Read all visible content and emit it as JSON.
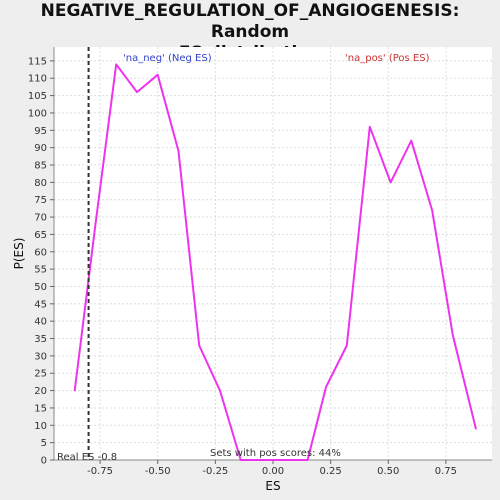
{
  "chart_data": {
    "type": "line",
    "title_line1": "NEGATIVE_REGULATION_OF_ANGIOGENESIS: Random",
    "title_line2": "ES distribution",
    "xlabel": "ES",
    "ylabel": "P(ES)",
    "xlim": [
      -0.95,
      0.95
    ],
    "ylim": [
      0,
      119
    ],
    "x_ticks": [
      -0.75,
      -0.5,
      -0.25,
      0.0,
      0.25,
      0.5,
      0.75
    ],
    "x_tick_labels": [
      "-0.75",
      "-0.50",
      "-0.25",
      "0.00",
      "0.25",
      "0.50",
      "0.75"
    ],
    "y_ticks": [
      0,
      5,
      10,
      15,
      20,
      25,
      30,
      35,
      40,
      45,
      50,
      55,
      60,
      65,
      70,
      75,
      80,
      85,
      90,
      95,
      100,
      105,
      110,
      115
    ],
    "grid": true,
    "series": [
      {
        "color": "#ee33ee",
        "points": [
          [
            -0.86,
            20
          ],
          [
            -0.77,
            68
          ],
          [
            -0.68,
            114
          ],
          [
            -0.59,
            106
          ],
          [
            -0.5,
            111
          ],
          [
            -0.41,
            89
          ],
          [
            -0.32,
            33
          ],
          [
            -0.23,
            20
          ],
          [
            -0.14,
            0
          ],
          [
            0.05,
            0
          ],
          [
            0.15,
            0
          ],
          [
            0.23,
            21
          ],
          [
            0.32,
            33
          ],
          [
            0.42,
            96
          ],
          [
            0.51,
            80
          ],
          [
            0.6,
            92
          ],
          [
            0.69,
            72
          ],
          [
            0.78,
            36
          ],
          [
            0.88,
            9
          ]
        ]
      }
    ],
    "real_es": -0.8,
    "real_es_label": "Real ES -0.8",
    "neg_label": "'na_neg' (Neg ES)",
    "pos_label": "'na_pos' (Pos ES)",
    "sets_label": "Sets with pos scores: 44%",
    "colors": {
      "neg_label": "#3344cc",
      "pos_label": "#cc3333",
      "plot_bg": "#ffffff",
      "page_bg": "#eeeeee"
    }
  }
}
